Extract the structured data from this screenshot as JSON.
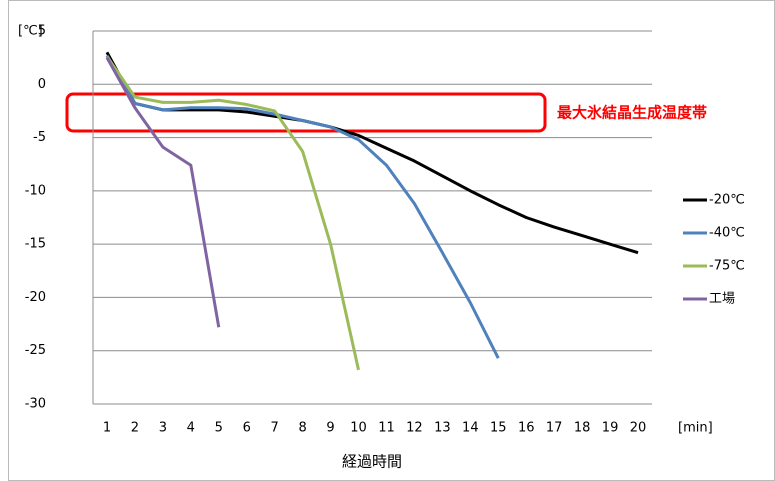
{
  "chart_data": {
    "type": "line",
    "y_axis_label": "[℃]",
    "x_axis_unit": "[min]",
    "x_axis_title": "経過時間",
    "annotation": "最大氷結晶生成温度帯",
    "categories": [
      1,
      2,
      3,
      4,
      5,
      6,
      7,
      8,
      9,
      10,
      11,
      12,
      13,
      14,
      15,
      16,
      17,
      18,
      19,
      20
    ],
    "series": [
      {
        "name": "-20℃",
        "color": "#000000",
        "values": [
          3,
          -1.8,
          -2.4,
          -2.4,
          -2.4,
          -2.6,
          -3,
          -3.4,
          -4,
          -4.8,
          -6,
          -7.2,
          -8.6,
          -10,
          -11.3,
          -12.5,
          -13.4,
          -14.2,
          -15,
          -15.8
        ]
      },
      {
        "name": "-40℃",
        "color": "#4f81bd",
        "values": [
          2.7,
          -1.8,
          -2.4,
          -2.2,
          -2.2,
          -2.3,
          -2.8,
          -3.4,
          -4,
          -5.2,
          -7.6,
          -11.2,
          -15.8,
          -20.5,
          -25.7,
          null,
          null,
          null,
          null,
          null
        ]
      },
      {
        "name": "-75℃",
        "color": "#9bbb59",
        "values": [
          2.6,
          -1.2,
          -1.7,
          -1.7,
          -1.5,
          -1.9,
          -2.5,
          -6.3,
          -15,
          -26.8,
          null,
          null,
          null,
          null,
          null,
          null,
          null,
          null,
          null,
          null
        ]
      },
      {
        "name": "工場",
        "color": "#8064a2",
        "values": [
          2.5,
          -2.2,
          -5.9,
          -7.6,
          -22.8,
          null,
          null,
          null,
          null,
          null,
          null,
          null,
          null,
          null,
          null,
          null,
          null,
          null,
          null,
          null
        ]
      }
    ],
    "ylim": [
      -30,
      5
    ],
    "yticks": [
      5,
      0,
      -5,
      -10,
      -15,
      -20,
      -25,
      -30
    ],
    "grid": true,
    "legend": "right"
  }
}
